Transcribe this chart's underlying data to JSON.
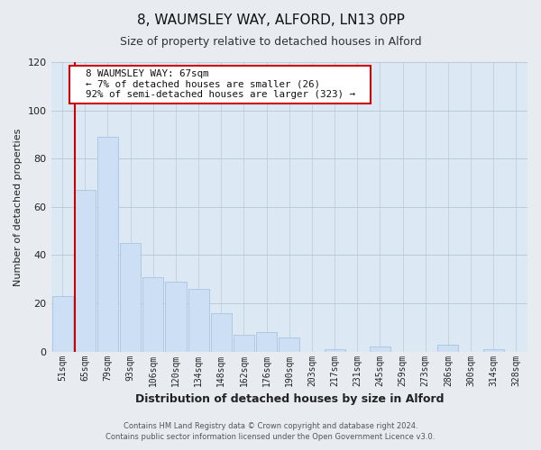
{
  "title1": "8, WAUMSLEY WAY, ALFORD, LN13 0PP",
  "title2": "Size of property relative to detached houses in Alford",
  "xlabel": "Distribution of detached houses by size in Alford",
  "ylabel": "Number of detached properties",
  "bar_labels": [
    "51sqm",
    "65sqm",
    "79sqm",
    "93sqm",
    "106sqm",
    "120sqm",
    "134sqm",
    "148sqm",
    "162sqm",
    "176sqm",
    "190sqm",
    "203sqm",
    "217sqm",
    "231sqm",
    "245sqm",
    "259sqm",
    "273sqm",
    "286sqm",
    "300sqm",
    "314sqm",
    "328sqm"
  ],
  "bar_values": [
    23,
    67,
    89,
    45,
    31,
    29,
    26,
    16,
    7,
    8,
    6,
    0,
    1,
    0,
    2,
    0,
    0,
    3,
    0,
    1,
    0
  ],
  "bar_color": "#ccdff5",
  "bar_edge_color": "#a8c4e0",
  "vline_x_idx": 1,
  "vline_color": "#cc0000",
  "ylim": [
    0,
    120
  ],
  "yticks": [
    0,
    20,
    40,
    60,
    80,
    100,
    120
  ],
  "annotation_title": "8 WAUMSLEY WAY: 67sqm",
  "annotation_line1": "← 7% of detached houses are smaller (26)",
  "annotation_line2": "92% of semi-detached houses are larger (323) →",
  "annotation_box_color": "#ffffff",
  "annotation_box_edge": "#cc0000",
  "footer1": "Contains HM Land Registry data © Crown copyright and database right 2024.",
  "footer2": "Contains public sector information licensed under the Open Government Licence v3.0.",
  "bg_color": "#e8ecf0",
  "plot_bg_color": "#dce8f4",
  "grid_color": "#b8ccd8",
  "title1_fontsize": 11,
  "title2_fontsize": 9,
  "xlabel_fontsize": 9,
  "ylabel_fontsize": 8
}
